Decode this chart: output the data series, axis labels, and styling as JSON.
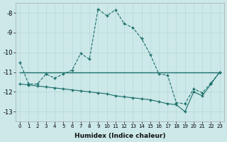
{
  "xlabel": "Humidex (Indice chaleur)",
  "background_color": "#cce8e8",
  "grid_color": "#b8d8d8",
  "line_color": "#1a6e6a",
  "xlim": [
    -0.5,
    23.5
  ],
  "ylim": [
    -13.5,
    -7.5
  ],
  "yticks": [
    -8,
    -9,
    -10,
    -11,
    -12,
    -13
  ],
  "xticks": [
    0,
    1,
    2,
    3,
    4,
    5,
    6,
    7,
    8,
    9,
    10,
    11,
    12,
    13,
    14,
    15,
    16,
    17,
    18,
    19,
    20,
    21,
    22,
    23
  ],
  "line1_x": [
    0,
    1,
    2,
    3,
    4,
    5,
    6,
    7,
    8,
    9,
    10,
    11,
    12,
    13,
    14,
    15,
    16,
    17,
    18,
    19,
    20,
    21,
    22,
    23
  ],
  "line1_y": [
    -10.5,
    -11.6,
    -11.6,
    -11.1,
    -11.3,
    -11.1,
    -10.9,
    -10.05,
    -10.35,
    -7.8,
    -8.15,
    -7.85,
    -8.55,
    -8.75,
    -9.3,
    -10.1,
    -11.1,
    -11.15,
    -12.55,
    -12.6,
    -11.85,
    -12.05,
    -11.55,
    -11.0
  ],
  "line2_x": [
    0,
    23
  ],
  "line2_y": [
    -11.0,
    -11.0
  ],
  "line3_x": [
    0,
    1,
    2,
    3,
    4,
    5,
    6,
    7,
    8,
    9,
    10,
    11,
    12,
    13,
    14,
    15,
    16,
    17,
    18,
    19,
    20,
    21,
    22,
    23
  ],
  "line3_y": [
    -11.6,
    -11.65,
    -11.7,
    -11.75,
    -11.8,
    -11.85,
    -11.9,
    -11.95,
    -12.0,
    -12.05,
    -12.1,
    -12.2,
    -12.25,
    -12.3,
    -12.35,
    -12.4,
    -12.5,
    -12.6,
    -12.65,
    -13.0,
    -12.0,
    -12.2,
    -11.6,
    -11.0
  ]
}
